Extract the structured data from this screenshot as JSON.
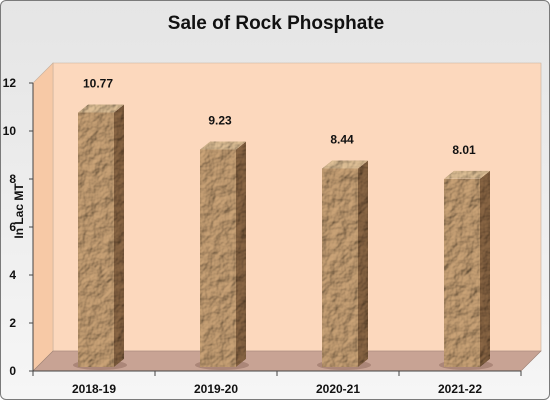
{
  "chart_data": {
    "type": "bar",
    "title": "Sale of Rock Phosphate",
    "ylabel": "In Lac MT",
    "xlabel": "",
    "categories": [
      "2018-19",
      "2019-20",
      "2020-21",
      "2021-22"
    ],
    "values": [
      10.77,
      9.23,
      8.44,
      8.01
    ],
    "ylim": [
      0,
      12
    ],
    "yticks": [
      "0",
      "2",
      "4",
      "6",
      "8",
      "10",
      "12"
    ],
    "data_labels": [
      "10.77",
      "9.23",
      "8.44",
      "8.01"
    ],
    "grid": false,
    "legend": "none",
    "colors": {
      "plot_back": "#fcd8bd",
      "floor": "#c8a394",
      "bar_front": "#c9a276",
      "bar_side": "#8a6644",
      "bar_top": "#dfc096"
    }
  }
}
